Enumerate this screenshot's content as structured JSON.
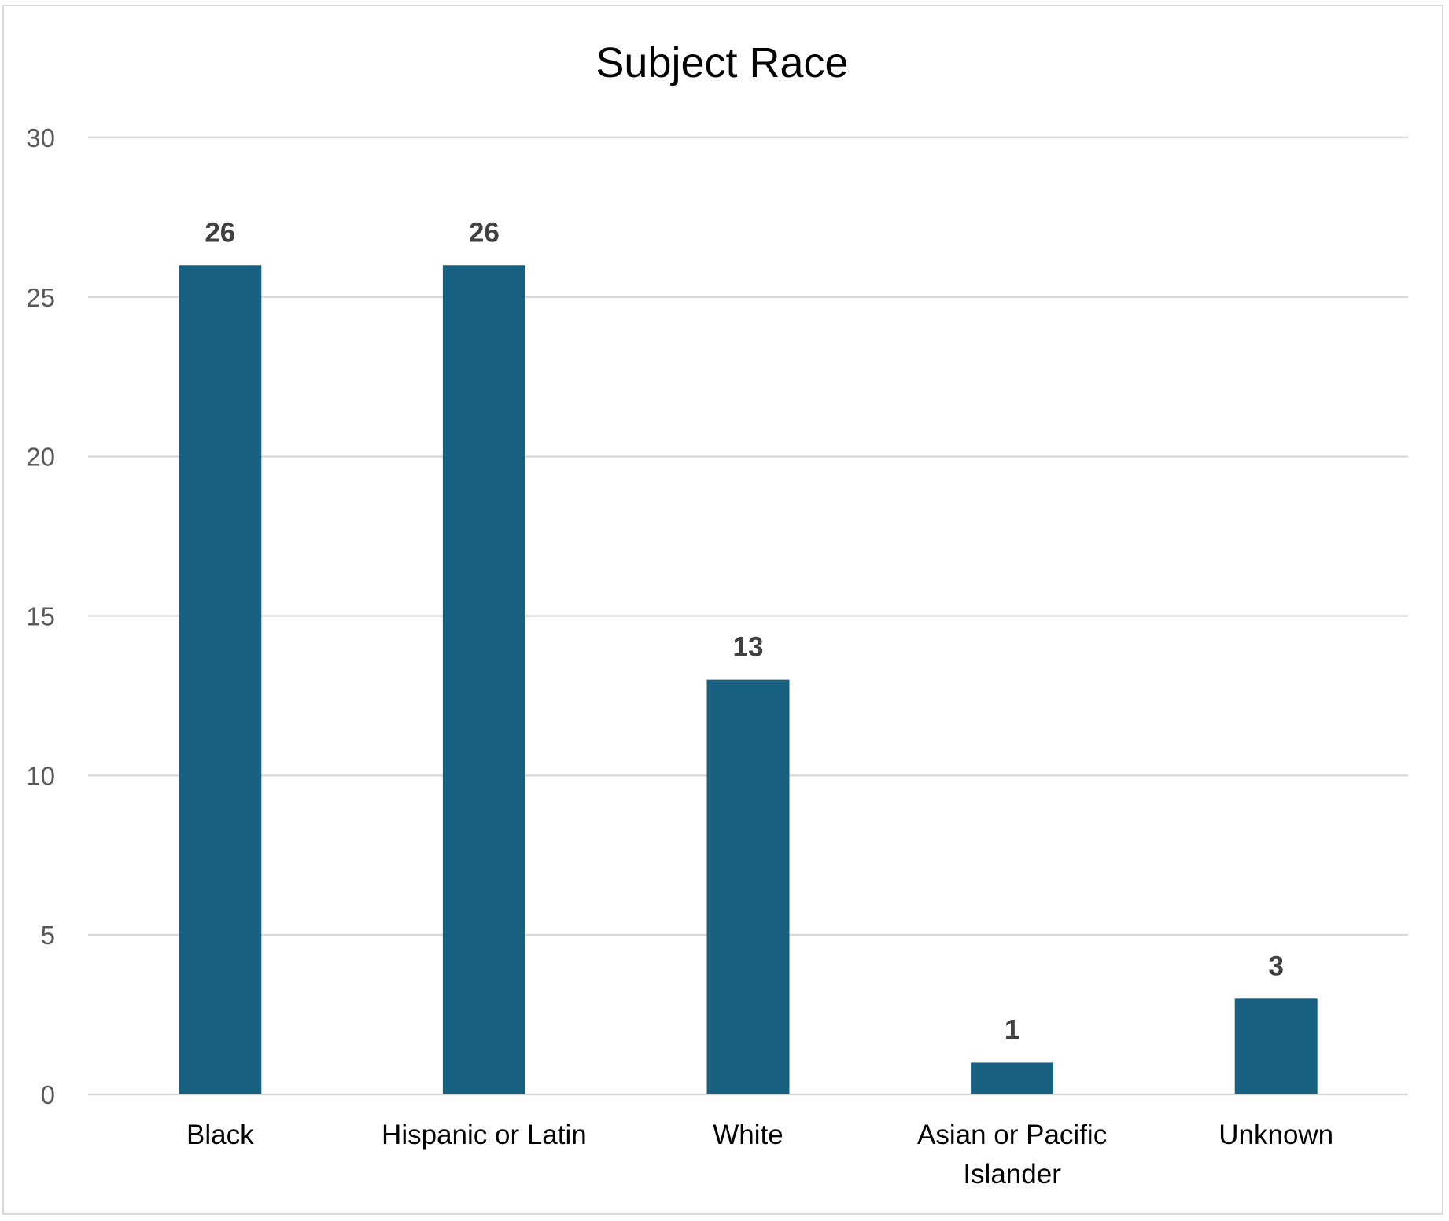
{
  "chart_data": {
    "type": "bar",
    "title": "Subject Race",
    "xlabel": "",
    "ylabel": "",
    "categories": [
      [
        "Black"
      ],
      [
        "Hispanic or Latin"
      ],
      [
        "White"
      ],
      [
        "Asian or Pacific",
        "Islander"
      ],
      [
        "Unknown"
      ]
    ],
    "values": [
      26,
      26,
      13,
      1,
      3
    ],
    "data_labels": [
      "26",
      "26",
      "13",
      "1",
      "3"
    ],
    "ylim": [
      0,
      30
    ],
    "yticks": [
      0,
      5,
      10,
      15,
      20,
      25,
      30
    ],
    "grid": true,
    "legend": "none",
    "colors": {
      "bar": "#17607F",
      "gridline": "#D9D9D9",
      "border": "#D9D9D9"
    }
  }
}
